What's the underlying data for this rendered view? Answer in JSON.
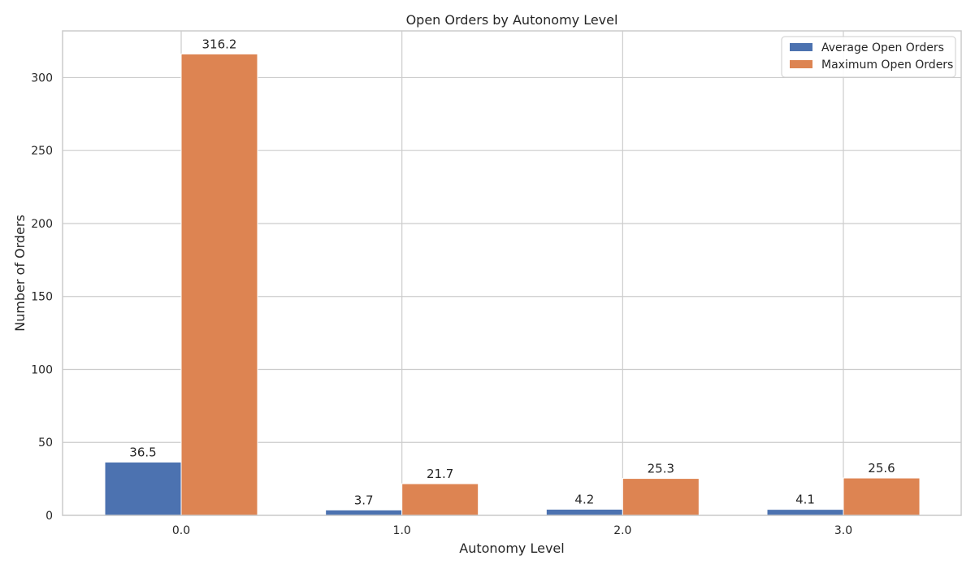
{
  "chart_data": {
    "type": "bar",
    "title": "Open Orders by Autonomy Level",
    "xlabel": "Autonomy Level",
    "ylabel": "Number of Orders",
    "categories": [
      "0.0",
      "1.0",
      "2.0",
      "3.0"
    ],
    "series": [
      {
        "name": "Average Open Orders",
        "values": [
          36.5,
          3.7,
          4.2,
          4.1
        ],
        "labels": [
          "36.5",
          "3.7",
          "4.2",
          "4.1"
        ],
        "color": "#4c72b0"
      },
      {
        "name": "Maximum Open Orders",
        "values": [
          316.2,
          21.7,
          25.3,
          25.6
        ],
        "labels": [
          "316.2",
          "21.7",
          "25.3",
          "25.6"
        ],
        "color": "#dd8452"
      }
    ],
    "ylim": [
      0,
      332
    ],
    "yticks": [
      0,
      50,
      100,
      150,
      200,
      250,
      300
    ],
    "ytick_labels": [
      "0",
      "50",
      "100",
      "150",
      "200",
      "250",
      "300"
    ],
    "grid": true,
    "legend_position": "top-right",
    "colors": {
      "grid": "#cccccc",
      "axes_edge": "#cccccc",
      "text": "#262626"
    }
  }
}
